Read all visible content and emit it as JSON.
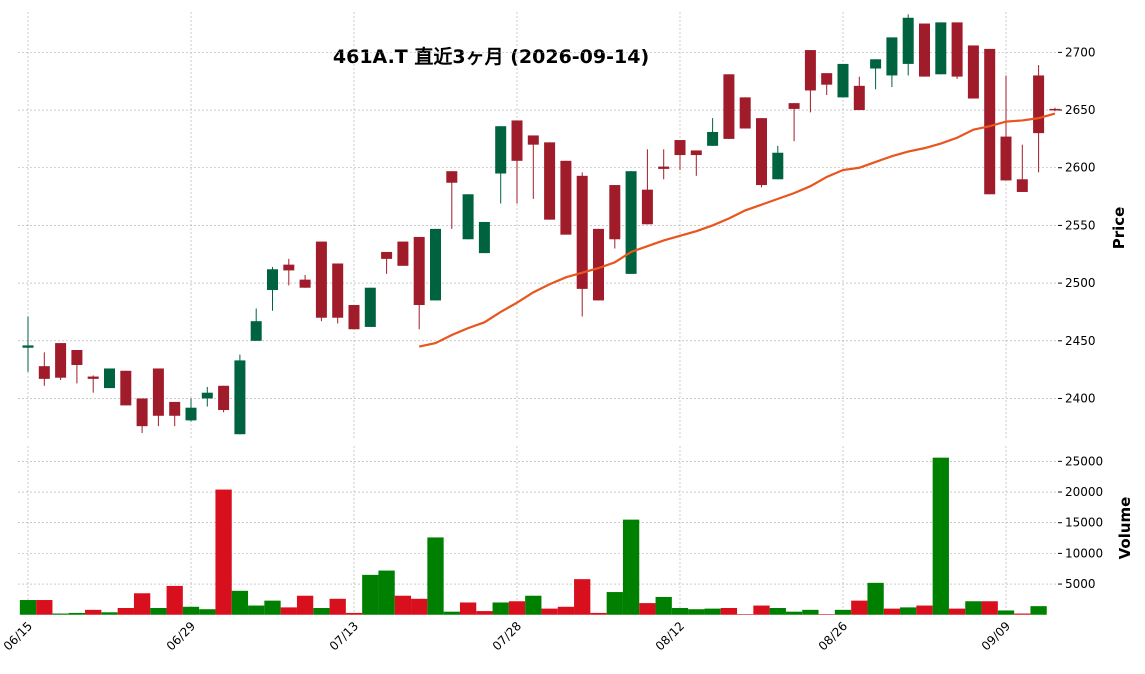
{
  "chart_data": {
    "type": "candlestick",
    "title": "461A.T  直近3ヶ月 (2026-09-14)",
    "ylabel": "Price",
    "y2label": "Volume",
    "categories": [
      "06/15",
      null,
      null,
      null,
      null,
      null,
      null,
      null,
      null,
      null,
      "06/29",
      null,
      null,
      null,
      null,
      null,
      null,
      null,
      null,
      null,
      "07/13",
      null,
      null,
      null,
      null,
      null,
      null,
      null,
      null,
      null,
      "07/28",
      null,
      null,
      null,
      null,
      null,
      null,
      null,
      null,
      null,
      "08/12",
      null,
      null,
      null,
      null,
      null,
      null,
      null,
      null,
      null,
      "08/26",
      null,
      null,
      null,
      null,
      null,
      null,
      null,
      null,
      null,
      "09/09",
      null,
      null,
      null
    ],
    "open": [
      2444,
      2428,
      2448,
      2442,
      2419,
      2409,
      2424,
      2400,
      2426,
      2397,
      2381,
      2400,
      2411,
      2369,
      2450,
      2494,
      2516,
      2503,
      2536,
      2517,
      2481,
      2462,
      2527,
      2536,
      2540,
      2485,
      2597,
      2538,
      2526,
      2595,
      2641,
      2628,
      2622,
      2606,
      2593,
      2547,
      2585,
      2508,
      2581,
      2601,
      2624,
      2615,
      2619,
      2681,
      2661,
      2643,
      2590,
      2656,
      2702,
      2682,
      2661,
      2671,
      2686,
      2680,
      2690,
      2725,
      2681,
      2726,
      2706,
      2703,
      2627,
      2590,
      2680,
      2651
    ],
    "high": [
      2471,
      2440,
      2448,
      2442,
      2420,
      2426,
      2424,
      2400,
      2426,
      2397,
      2400,
      2410,
      2411,
      2438,
      2478,
      2514,
      2521,
      2507,
      2536,
      2517,
      2481,
      2496,
      2527,
      2536,
      2540,
      2547,
      2597,
      2577,
      2553,
      2636,
      2641,
      2628,
      2622,
      2606,
      2596,
      2547,
      2585,
      2597,
      2616,
      2616,
      2624,
      2615,
      2643,
      2681,
      2661,
      2643,
      2619,
      2656,
      2702,
      2682,
      2690,
      2679,
      2694,
      2713,
      2733,
      2725,
      2726,
      2726,
      2706,
      2703,
      2680,
      2620,
      2689,
      2652
    ],
    "low": [
      2423,
      2411,
      2416,
      2413,
      2405,
      2409,
      2394,
      2370,
      2376,
      2376,
      2380,
      2393,
      2388,
      2369,
      2450,
      2476,
      2498,
      2496,
      2467,
      2465,
      2460,
      2462,
      2508,
      2515,
      2460,
      2485,
      2547,
      2538,
      2526,
      2569,
      2569,
      2573,
      2555,
      2542,
      2471,
      2485,
      2530,
      2508,
      2551,
      2590,
      2598,
      2593,
      2619,
      2625,
      2634,
      2583,
      2590,
      2623,
      2648,
      2663,
      2661,
      2650,
      2668,
      2670,
      2680,
      2679,
      2681,
      2677,
      2660,
      2577,
      2589,
      2579,
      2596,
      2649
    ],
    "close": [
      2446,
      2417,
      2418,
      2429,
      2417,
      2426,
      2394,
      2376,
      2385,
      2385,
      2392,
      2405,
      2390,
      2433,
      2467,
      2512,
      2511,
      2496,
      2470,
      2470,
      2460,
      2496,
      2521,
      2515,
      2481,
      2547,
      2587,
      2577,
      2553,
      2636,
      2606,
      2620,
      2555,
      2542,
      2495,
      2485,
      2538,
      2597,
      2551,
      2599,
      2611,
      2611,
      2631,
      2625,
      2634,
      2585,
      2613,
      2651,
      2667,
      2672,
      2690,
      2650,
      2694,
      2713,
      2730,
      2679,
      2726,
      2679,
      2660,
      2577,
      2589,
      2579,
      2630,
      2650
    ],
    "up_color": "#006340",
    "down_color": "#a01c2a",
    "ma": {
      "color": "#e8551e",
      "values": [
        null,
        null,
        null,
        null,
        null,
        null,
        null,
        null,
        null,
        null,
        null,
        null,
        null,
        null,
        null,
        null,
        null,
        null,
        null,
        null,
        null,
        null,
        null,
        null,
        2445,
        2448,
        2455,
        2461,
        2466,
        2475,
        2483,
        2492,
        2499,
        2505,
        2509,
        2513,
        2518,
        2527,
        2532,
        2537,
        2541,
        2545,
        2550,
        2556,
        2563,
        2568,
        2573,
        2578,
        2584,
        2592,
        2598,
        2600,
        2605,
        2610,
        2614,
        2617,
        2621,
        2626,
        2633,
        2636,
        2640,
        2641,
        2643,
        2647
      ]
    },
    "ylim": [
      2364,
      2735
    ],
    "yticks": [
      2400,
      2450,
      2500,
      2550,
      2600,
      2650,
      2700
    ],
    "volume": {
      "values": [
        2400,
        2400,
        200,
        300,
        800,
        400,
        1100,
        3500,
        1100,
        4700,
        1300,
        900,
        20400,
        3900,
        1500,
        2300,
        1200,
        3100,
        1100,
        2600,
        300,
        6500,
        7200,
        3100,
        2600,
        12600,
        500,
        2000,
        600,
        2000,
        2200,
        3100,
        1000,
        1300,
        5800,
        300,
        3700,
        15500,
        1900,
        2900,
        1100,
        900,
        1000,
        1100,
        100,
        1500,
        1100,
        500,
        800,
        100,
        800,
        2300,
        5200,
        1000,
        1200,
        1500,
        25600,
        1000,
        2200,
        2200,
        700,
        200,
        1400,
        0
      ],
      "colors": [
        "#008000",
        "#d8101e",
        "#008000",
        "#008000",
        "#d8101e",
        "#008000",
        "#d8101e",
        "#d8101e",
        "#008000",
        "#d8101e",
        "#008000",
        "#008000",
        "#d8101e",
        "#008000",
        "#008000",
        "#008000",
        "#d8101e",
        "#d8101e",
        "#008000",
        "#d8101e",
        "#d8101e",
        "#008000",
        "#008000",
        "#d8101e",
        "#d8101e",
        "#008000",
        "#008000",
        "#d8101e",
        "#d8101e",
        "#008000",
        "#d8101e",
        "#008000",
        "#d8101e",
        "#d8101e",
        "#d8101e",
        "#d8101e",
        "#008000",
        "#008000",
        "#d8101e",
        "#008000",
        "#008000",
        "#008000",
        "#008000",
        "#d8101e",
        "#d8101e",
        "#d8101e",
        "#008000",
        "#008000",
        "#008000",
        "#d8101e",
        "#008000",
        "#d8101e",
        "#008000",
        "#d8101e",
        "#008000",
        "#d8101e",
        "#008000",
        "#d8101e",
        "#008000",
        "#d8101e",
        "#008000",
        "#d8101e",
        "#008000",
        "#d8101e"
      ]
    },
    "y2lim": [
      0,
      27500
    ],
    "y2ticks": [
      5000,
      10000,
      15000,
      20000,
      25000
    ],
    "grid": true
  }
}
